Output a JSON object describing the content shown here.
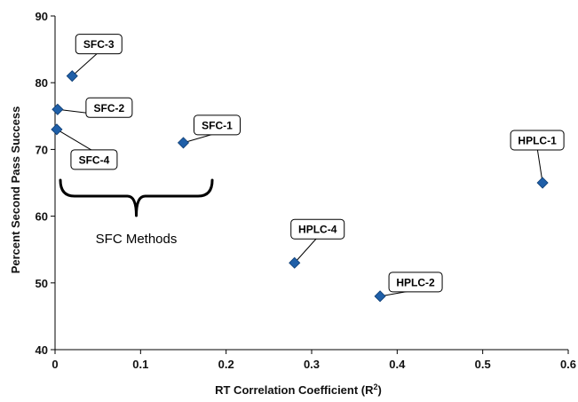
{
  "chart_data": {
    "type": "scatter",
    "xlabel": "RT Correlation Coefficient (R",
    "xlabel_sup": "2",
    "xlabel_suffix": ")",
    "ylabel": "Percent Second Pass Success",
    "xlim": [
      0,
      0.6
    ],
    "ylim": [
      40,
      90
    ],
    "xticks": [
      "0",
      "0.1",
      "0.2",
      "0.3",
      "0.4",
      "0.5",
      "0.6"
    ],
    "yticks": [
      "40",
      "50",
      "60",
      "70",
      "80",
      "90"
    ],
    "grid": false,
    "marker": "diamond",
    "marker_color": "#1f5fa8",
    "points": [
      {
        "label": "SFC-3",
        "x": 0.02,
        "y": 81
      },
      {
        "label": "SFC-2",
        "x": 0.003,
        "y": 76
      },
      {
        "label": "SFC-4",
        "x": 0.002,
        "y": 73
      },
      {
        "label": "SFC-1",
        "x": 0.15,
        "y": 71
      },
      {
        "label": "HPLC-1",
        "x": 0.57,
        "y": 65
      },
      {
        "label": "HPLC-4",
        "x": 0.28,
        "y": 53
      },
      {
        "label": "HPLC-2",
        "x": 0.38,
        "y": 48
      }
    ],
    "annotations": [
      {
        "text": "SFC Methods",
        "type": "brace",
        "x_from": 0.0,
        "x_to": 0.19
      }
    ]
  }
}
